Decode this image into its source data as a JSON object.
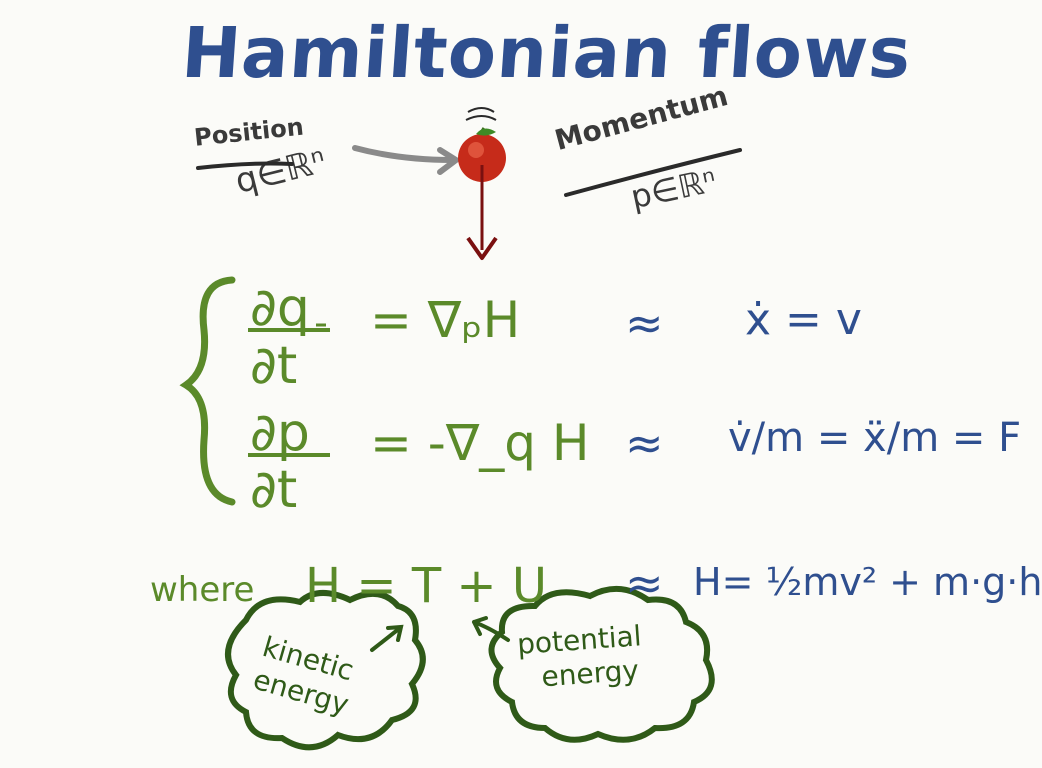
{
  "title": "Hamiltonian flows",
  "position": {
    "label": "Position",
    "space": "q∈ℝⁿ"
  },
  "momentum": {
    "label": "Momentum",
    "space": "p∈ℝⁿ"
  },
  "equations": [
    {
      "lhs_top": "∂q",
      "lhs_bottom": "∂t",
      "rhs": "= ∇ₚH",
      "approx": "≈",
      "analogy": "ẋ =  v"
    },
    {
      "lhs_top": "∂p",
      "lhs_bottom": "∂t",
      "rhs": "= -∇_q H",
      "approx": "≈",
      "analogy": "v̇/m = ẍ/m = F"
    }
  ],
  "where": "where",
  "hamiltonian_def": "H = T + U",
  "approx3": "≈",
  "hamiltonian_energy": "H= ½mv² +  m·g·h",
  "clouds": {
    "kinetic_line1": "kinetic",
    "kinetic_line2": "energy",
    "potential_line1": "potential",
    "potential_line2": "energy"
  },
  "colors": {
    "title": "#2f4f8f",
    "equations": "#5b8a2a",
    "clouds": "#2f5a18",
    "arrow": "#7a1010",
    "apple": "#c62b1a"
  }
}
